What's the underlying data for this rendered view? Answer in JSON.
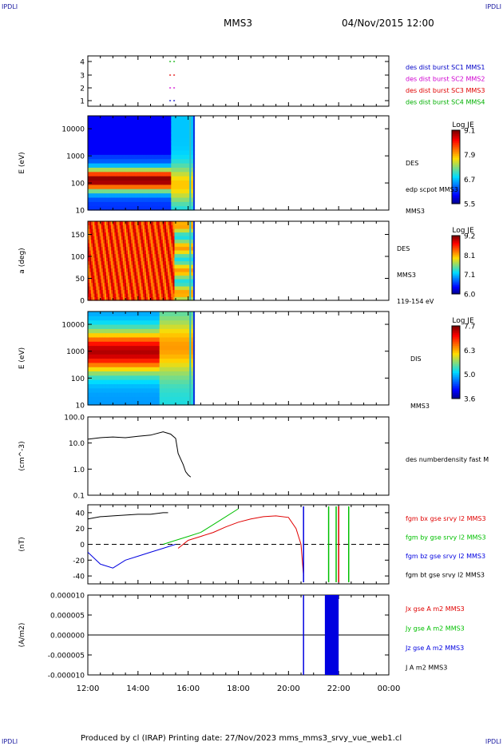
{
  "header": {
    "corner_left_top": "IPDLI",
    "corner_right_top": "IPDLI",
    "mission": "MMS3",
    "datetime": "04/Nov/2015 12:00"
  },
  "footer": {
    "text": "Produced by cl (IRAP)   Printing date: 27/Nov/2023   mms_mms3_srvy_vue_web1.cl",
    "corner_left_bottom": "IPDLI",
    "corner_right_bottom": "IPDLI"
  },
  "time_axis": {
    "tick_labels": [
      "12:00",
      "14:00",
      "16:00",
      "18:00",
      "20:00",
      "22:00",
      "00:00"
    ]
  },
  "chart_data": [
    {
      "type": "scatter",
      "id": "burst",
      "y_ticks": [
        "4",
        "3",
        "2",
        "1"
      ],
      "legend": [
        {
          "label": "des dist burst SC1 MMS1",
          "color": "#0000c8"
        },
        {
          "label": "des dist burst SC2 MMS2",
          "color": "#d000d0"
        },
        {
          "label": "des dist burst SC3 MMS3",
          "color": "#e00000"
        },
        {
          "label": "des dist burst SC4 MMS4",
          "color": "#00b000"
        }
      ]
    },
    {
      "type": "heatmap",
      "id": "des_energy",
      "ylabel": "E (eV)",
      "y_ticks": [
        "10000",
        "1000",
        "100",
        "10"
      ],
      "ylim": [
        10,
        30000
      ],
      "log_y": true,
      "right_labels": [
        "DES",
        "edp scpot MMS3",
        "MMS3"
      ],
      "colorbar": {
        "title": "Log JE",
        "ticks": [
          "9.1",
          "7.9",
          "6.7",
          "5.5"
        ]
      }
    },
    {
      "type": "heatmap",
      "id": "des_pitch",
      "ylabel": "a (deg)",
      "y_ticks": [
        "150",
        "100",
        "50",
        "0"
      ],
      "ylim": [
        0,
        180
      ],
      "right_labels": [
        "DES",
        "MMS3",
        "119-154 eV"
      ],
      "colorbar": {
        "title": "Log JE",
        "ticks": [
          "9.2",
          "8.1",
          "7.1",
          "6.0"
        ]
      }
    },
    {
      "type": "heatmap",
      "id": "dis_energy",
      "ylabel": "E (eV)",
      "y_ticks": [
        "10000",
        "1000",
        "100",
        "10"
      ],
      "ylim": [
        10,
        30000
      ],
      "log_y": true,
      "right_labels": [
        "DIS",
        "MMS3"
      ],
      "colorbar": {
        "title": "Log JE",
        "ticks": [
          "7.7",
          "6.3",
          "5.0",
          "3.6"
        ]
      }
    },
    {
      "type": "line",
      "id": "density",
      "ylabel": "(cm^-3)",
      "y_ticks": [
        "100.0",
        "10.0",
        "1.0",
        "0.1"
      ],
      "ylim": [
        0.1,
        100
      ],
      "log_y": true,
      "series": [
        {
          "name": "des numberdensity fast M",
          "color": "#000000",
          "x": [
            12.0,
            12.5,
            13.0,
            13.5,
            14.0,
            14.5,
            15.0,
            15.3,
            15.5,
            15.6,
            15.8,
            15.9,
            16.0,
            16.1
          ],
          "y": [
            14,
            16,
            17,
            16,
            18,
            20,
            27,
            22,
            15,
            4,
            1.5,
            0.8,
            0.6,
            0.5
          ]
        }
      ]
    },
    {
      "type": "line",
      "id": "fgm",
      "ylabel": "(nT)",
      "y_ticks": [
        "40",
        "20",
        "0",
        "-20",
        "-40"
      ],
      "ylim": [
        -50,
        50
      ],
      "series": [
        {
          "name": "fgm bx gse srvy l2 MMS3",
          "color": "#e00000",
          "x": [
            15.6,
            16.0,
            16.5,
            17.0,
            17.5,
            18.0,
            18.5,
            19.0,
            19.5,
            20.0,
            20.3,
            20.5,
            20.6
          ],
          "y": [
            -5,
            5,
            10,
            15,
            22,
            28,
            32,
            35,
            36,
            34,
            20,
            0,
            -40
          ]
        },
        {
          "name": "fgm by gse srvy l2 MMS3",
          "color": "#00c000",
          "x": [
            15.0,
            15.5,
            16.0,
            16.5,
            17.0,
            17.5,
            18.0
          ],
          "y": [
            0,
            5,
            10,
            15,
            25,
            35,
            45
          ]
        },
        {
          "name": "fgm bz gse srvy l2 MMS3",
          "color": "#0000e0",
          "x": [
            12.0,
            12.5,
            13.0,
            13.5,
            14.0,
            14.5,
            15.0,
            15.5
          ],
          "y": [
            -10,
            -25,
            -30,
            -20,
            -15,
            -10,
            -5,
            0
          ]
        },
        {
          "name": "fgm bt gse srvy l2 MMS3",
          "color": "#000000",
          "x": [
            12.0,
            12.5,
            13.0,
            13.5,
            14.0,
            14.5,
            15.0,
            15.2
          ],
          "y": [
            32,
            35,
            36,
            37,
            38,
            38,
            40,
            40
          ]
        }
      ]
    },
    {
      "type": "line",
      "id": "current",
      "ylabel": "(A/m2)",
      "y_ticks": [
        "0.000010",
        "0.000005",
        "0.000000",
        "-0.000005",
        "-0.000010"
      ],
      "ylim": [
        -1e-05,
        1e-05
      ],
      "series": [
        {
          "name": "Jx gse A m2 MMS3",
          "color": "#e00000"
        },
        {
          "name": "Jy gse A m2 MMS3",
          "color": "#00c000"
        },
        {
          "name": "Jz gse A m2 MMS3",
          "color": "#0000e0"
        },
        {
          "name": "J A m2 MMS3",
          "color": "#000000"
        }
      ]
    }
  ]
}
